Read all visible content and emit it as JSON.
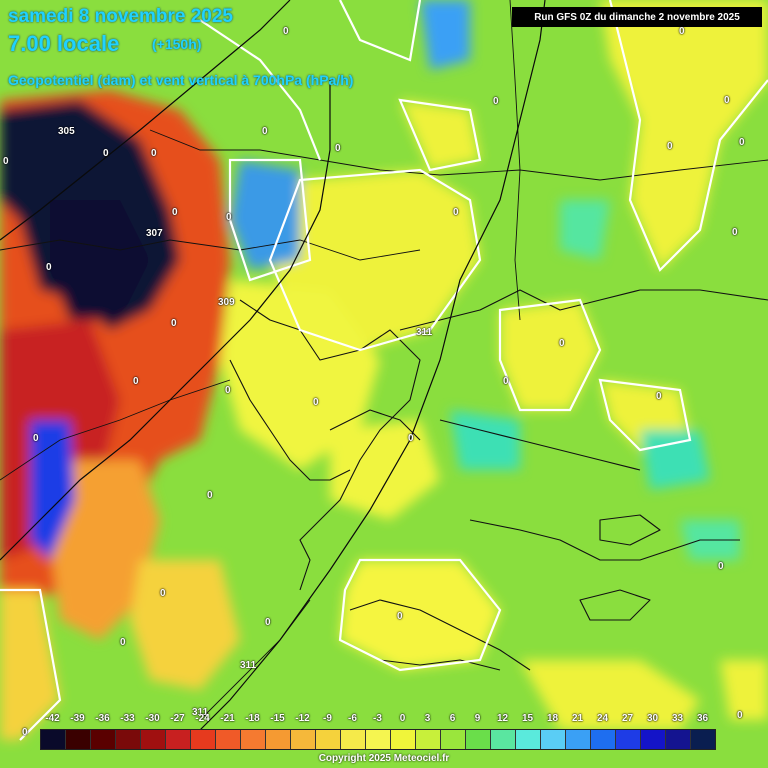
{
  "header": {
    "date_line": "samedi 8 novembre 2025",
    "time_line": "7.00 locale",
    "offset": "(+150h)",
    "field_title": "Geopotentiel (dam) et vent vertical à 700hPa (hPa/h)"
  },
  "run_info": "Run GFS 0Z du dimanche 2 novembre 2025",
  "copyright": "Copyright 2025 Meteociel.fr",
  "legend": {
    "ticks": [
      "-42",
      "-39",
      "-36",
      "-33",
      "-30",
      "-27",
      "-24",
      "-21",
      "-18",
      "-15",
      "-12",
      "-9",
      "-6",
      "-3",
      "0",
      "3",
      "6",
      "9",
      "12",
      "15",
      "18",
      "21",
      "24",
      "27",
      "30",
      "33",
      "36"
    ],
    "colors": [
      "#0a0a2a",
      "#3a0000",
      "#5a0000",
      "#7a0a0a",
      "#a01010",
      "#c82020",
      "#e63a1e",
      "#f05a28",
      "#f57a30",
      "#f59a32",
      "#f5b83a",
      "#f5d23c",
      "#f5ea4a",
      "#f5f550",
      "#f0f53a",
      "#c8f03a",
      "#9ae63c",
      "#6ade4a",
      "#5ae6a0",
      "#5aeadc",
      "#5acdf5",
      "#3aa0f5",
      "#1e6ef0",
      "#1e3ce6",
      "#1414c8",
      "#141490",
      "#0a1e50"
    ]
  },
  "contour_values": {
    "geopotential": [
      "305",
      "307",
      "309",
      "311",
      "311",
      "311"
    ],
    "vertical_zero": "0"
  }
}
